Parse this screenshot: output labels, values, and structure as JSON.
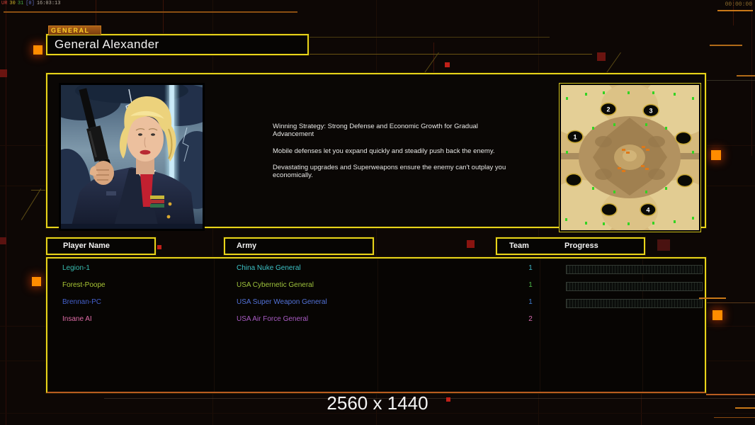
{
  "hud": {
    "debug_segments": [
      {
        "text": "UR",
        "color": "#d04038"
      },
      {
        "text": "30",
        "color": "#d0b428"
      },
      {
        "text": "31",
        "color": "#48b048"
      },
      {
        "text": "[0]",
        "color": "#6070c8"
      },
      {
        "text": "16:03:13",
        "color": "#b8b0a4"
      }
    ],
    "match_timer": "00:00:00",
    "resolution_label": "2560 x 1440"
  },
  "general_panel": {
    "tab_label": "GENERAL",
    "general_name": "General Alexander",
    "strategy": {
      "p1": "Winning Strategy: Strong Defense and Economic Growth for Gradual Advancement",
      "p2": "Mobile defenses let you expand quickly and steadily push back the enemy.",
      "p3": "Devastating upgrades and Superweapons ensure the enemy can't outplay you economically."
    }
  },
  "map_preview": {
    "start_positions": [
      "1",
      "2",
      "3",
      "4"
    ]
  },
  "player_table": {
    "headers": {
      "player_name": "Player Name",
      "army": "Army",
      "team": "Team",
      "progress": "Progress"
    },
    "rows": [
      {
        "name": "Legion-1",
        "army": "China Nuke General",
        "team": "1",
        "name_color": "#38bdb0",
        "army_color": "#3cc2c6",
        "team_color": "#3cb4c4",
        "progress_visible": true,
        "progress_percent": 0
      },
      {
        "name": "Forest-Poope",
        "army": "USA Cybernetic General",
        "team": "1",
        "name_color": "#a8c534",
        "army_color": "#9ec23c",
        "team_color": "#4cb848",
        "progress_visible": true,
        "progress_percent": 0
      },
      {
        "name": "Brennan-PC",
        "army": "USA Super Weapon General",
        "team": "1",
        "name_color": "#4460cc",
        "army_color": "#5272d8",
        "team_color": "#3f7ed2",
        "progress_visible": true,
        "progress_percent": 0
      },
      {
        "name": "Insane AI",
        "army": "USA Air Force General",
        "team": "2",
        "name_color": "#df6ca6",
        "army_color": "#a95cc4",
        "team_color": "#d96cb0",
        "progress_visible": false,
        "progress_percent": 0
      }
    ]
  },
  "theme": {
    "frame_yellow": "#e8d41a",
    "accent_orange": "#ff8c00",
    "bottom_border_orange": "#b85c20",
    "tab_text": "#ffd028"
  }
}
